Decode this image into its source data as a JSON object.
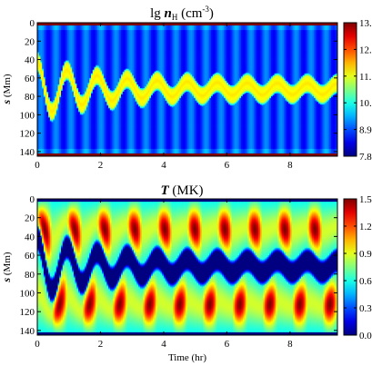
{
  "chart_data": [
    {
      "type": "heatmap",
      "title_prefix": "lg ",
      "title_var": "n",
      "title_sub": "H",
      "title_unit_open": " (cm",
      "title_unit_exp": "-3",
      "title_unit_close": ")",
      "ylabel_var": "s",
      "ylabel_unit": " (Mm)",
      "xlabel": "",
      "xlim": [
        0,
        9.5
      ],
      "ylim": [
        0,
        145
      ],
      "x_ticks": [
        0,
        2,
        4,
        6,
        8
      ],
      "y_ticks": [
        0,
        20,
        40,
        60,
        80,
        100,
        120,
        140
      ],
      "colorbar_ticks": [
        "13.3",
        "12.2",
        "11.1",
        "10.0",
        "8.96",
        "7.87"
      ],
      "colorbar_range": [
        7.87,
        13.3
      ],
      "colormap": "jet",
      "field": {
        "x_start": 0,
        "x_end": 9.5,
        "x_step": 0.05,
        "s_start": 0,
        "s_end": 145,
        "s_step": 1,
        "prominence_center_s": 72,
        "oscillation_period_hr": 0.95,
        "initial_amplitude_Mm": 30,
        "final_amplitude_Mm": 6,
        "damping_time_hr": 1.9,
        "prominence_half_width_Mm": 8,
        "chromosphere_depth_Mm": 3,
        "prominence_value": 11.1,
        "chromosphere_value": 13.3,
        "corona_value": 8.9,
        "corona_striation_amplitude": 0.4
      }
    },
    {
      "type": "heatmap",
      "title_var": "T",
      "title_unit": " (MK)",
      "ylabel_var": "s",
      "ylabel_unit": " (Mm)",
      "xlabel": "Time (hr)",
      "xlim": [
        0,
        9.5
      ],
      "ylim": [
        0,
        145
      ],
      "x_ticks": [
        0,
        2,
        4,
        6,
        8
      ],
      "y_ticks": [
        0,
        20,
        40,
        60,
        80,
        100,
        120,
        140
      ],
      "colorbar_ticks": [
        "1.53",
        "1.23",
        "0.92",
        "0.62",
        "0.31",
        "0.01"
      ],
      "colorbar_range": [
        0.01,
        1.53
      ],
      "colormap": "jet",
      "field": {
        "x_start": 0,
        "x_end": 9.5,
        "x_step": 0.05,
        "s_start": 0,
        "s_end": 145,
        "s_step": 1,
        "prominence_center_s": 72,
        "oscillation_period_hr": 0.95,
        "initial_amplitude_Mm": 30,
        "final_amplitude_Mm": 6,
        "damping_time_hr": 1.9,
        "prominence_half_width_Mm": 9,
        "chromosphere_depth_Mm": 3,
        "prominence_value": 0.01,
        "chromosphere_value": 0.01,
        "corona_min_value": 0.55,
        "corona_max_value": 1.53
      }
    }
  ]
}
